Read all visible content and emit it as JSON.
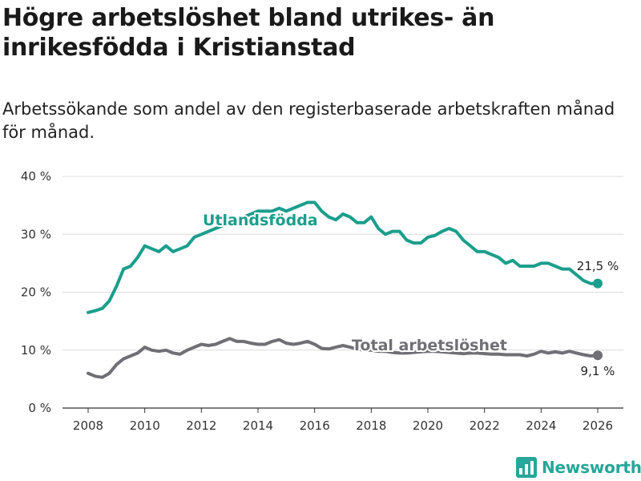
{
  "title": "Högre arbetslöshet bland utrikes- än inrikesfödda i Kristianstad",
  "subtitle": "Arbetssökande som andel av den registerbaserade arbetskraften månad för månad.",
  "brand": {
    "name": "Newsworthy",
    "icon": "newsworthy-logo-icon",
    "color": "#27a69a"
  },
  "chart_data": {
    "type": "line",
    "title": "Högre arbetslöshet bland utrikes- än inrikesfödda i Kristianstad",
    "xlabel": "",
    "ylabel": "",
    "xlim": [
      2007.5,
      2027
    ],
    "ylim": [
      0,
      40
    ],
    "grid": true,
    "x_ticks": [
      2008,
      2010,
      2012,
      2014,
      2016,
      2018,
      2020,
      2022,
      2024,
      2026
    ],
    "x_tick_labels": [
      "2008",
      "2010",
      "2012",
      "2014",
      "2016",
      "2018",
      "2020",
      "2022",
      "2024",
      "2026"
    ],
    "y_ticks": [
      0,
      10,
      20,
      30,
      40
    ],
    "y_tick_labels": [
      "0 %",
      "10 %",
      "20 %",
      "30 %",
      "40 %"
    ],
    "series": [
      {
        "name": "Utlandsfödda",
        "label": "Utlandsfödda",
        "color": "#1b9e8c",
        "end_label": "21,5 %",
        "x": [
          2008.0,
          2008.25,
          2008.5,
          2008.75,
          2009.0,
          2009.25,
          2009.5,
          2009.75,
          2010.0,
          2010.25,
          2010.5,
          2010.75,
          2011.0,
          2011.25,
          2011.5,
          2011.75,
          2012.0,
          2012.25,
          2012.5,
          2012.75,
          2013.0,
          2013.25,
          2013.5,
          2013.75,
          2014.0,
          2014.25,
          2014.5,
          2014.75,
          2015.0,
          2015.25,
          2015.5,
          2015.75,
          2016.0,
          2016.25,
          2016.5,
          2016.75,
          2017.0,
          2017.25,
          2017.5,
          2017.75,
          2018.0,
          2018.25,
          2018.5,
          2018.75,
          2019.0,
          2019.25,
          2019.5,
          2019.75,
          2020.0,
          2020.25,
          2020.5,
          2020.75,
          2021.0,
          2021.25,
          2021.5,
          2021.75,
          2022.0,
          2022.25,
          2022.5,
          2022.75,
          2023.0,
          2023.25,
          2023.5,
          2023.75,
          2024.0,
          2024.25,
          2024.5,
          2024.75,
          2025.0,
          2025.25,
          2025.5,
          2025.75,
          2026.0
        ],
        "values": [
          16.5,
          16.8,
          17.2,
          18.5,
          21.0,
          24.0,
          24.5,
          26.0,
          28.0,
          27.5,
          27.0,
          28.0,
          27.0,
          27.5,
          28.0,
          29.5,
          30.0,
          30.5,
          31.0,
          31.5,
          32.0,
          32.5,
          33.0,
          33.5,
          34.0,
          34.0,
          34.0,
          34.5,
          34.0,
          34.5,
          35.0,
          35.5,
          35.5,
          34.0,
          33.0,
          32.5,
          33.5,
          33.0,
          32.0,
          32.0,
          33.0,
          31.0,
          30.0,
          30.5,
          30.5,
          29.0,
          28.5,
          28.5,
          29.5,
          29.8,
          30.5,
          31.0,
          30.5,
          29.0,
          28.0,
          27.0,
          27.0,
          26.5,
          26.0,
          25.0,
          25.5,
          24.5,
          24.5,
          24.5,
          25.0,
          25.0,
          24.5,
          24.0,
          24.0,
          23.0,
          22.0,
          21.5,
          21.5
        ]
      },
      {
        "name": "Total arbetslöshet",
        "label": "Total arbetslöshet",
        "color": "#6f6f75",
        "end_label": "9,1 %",
        "x": [
          2008.0,
          2008.25,
          2008.5,
          2008.75,
          2009.0,
          2009.25,
          2009.5,
          2009.75,
          2010.0,
          2010.25,
          2010.5,
          2010.75,
          2011.0,
          2011.25,
          2011.5,
          2011.75,
          2012.0,
          2012.25,
          2012.5,
          2012.75,
          2013.0,
          2013.25,
          2013.5,
          2013.75,
          2014.0,
          2014.25,
          2014.5,
          2014.75,
          2015.0,
          2015.25,
          2015.5,
          2015.75,
          2016.0,
          2016.25,
          2016.5,
          2016.75,
          2017.0,
          2017.25,
          2017.5,
          2017.75,
          2018.0,
          2018.25,
          2018.5,
          2018.75,
          2019.0,
          2019.25,
          2019.5,
          2019.75,
          2020.0,
          2020.25,
          2020.5,
          2020.75,
          2021.0,
          2021.25,
          2021.5,
          2021.75,
          2022.0,
          2022.25,
          2022.5,
          2022.75,
          2023.0,
          2023.25,
          2023.5,
          2023.75,
          2024.0,
          2024.25,
          2024.5,
          2024.75,
          2025.0,
          2025.25,
          2025.5,
          2025.75,
          2026.0
        ],
        "values": [
          6.0,
          5.5,
          5.3,
          6.0,
          7.5,
          8.5,
          9.0,
          9.5,
          10.5,
          10.0,
          9.8,
          10.0,
          9.5,
          9.3,
          10.0,
          10.5,
          11.0,
          10.8,
          11.0,
          11.5,
          12.0,
          11.5,
          11.5,
          11.2,
          11.0,
          11.0,
          11.5,
          11.8,
          11.2,
          11.0,
          11.2,
          11.5,
          11.0,
          10.3,
          10.2,
          10.5,
          10.8,
          10.5,
          10.2,
          10.0,
          10.0,
          9.8,
          9.8,
          9.6,
          9.5,
          9.5,
          9.6,
          9.7,
          9.8,
          9.8,
          9.7,
          9.6,
          9.5,
          9.4,
          9.5,
          9.5,
          9.4,
          9.3,
          9.3,
          9.2,
          9.2,
          9.2,
          9.0,
          9.3,
          9.8,
          9.5,
          9.7,
          9.5,
          9.8,
          9.5,
          9.2,
          9.0,
          9.1
        ]
      }
    ]
  }
}
